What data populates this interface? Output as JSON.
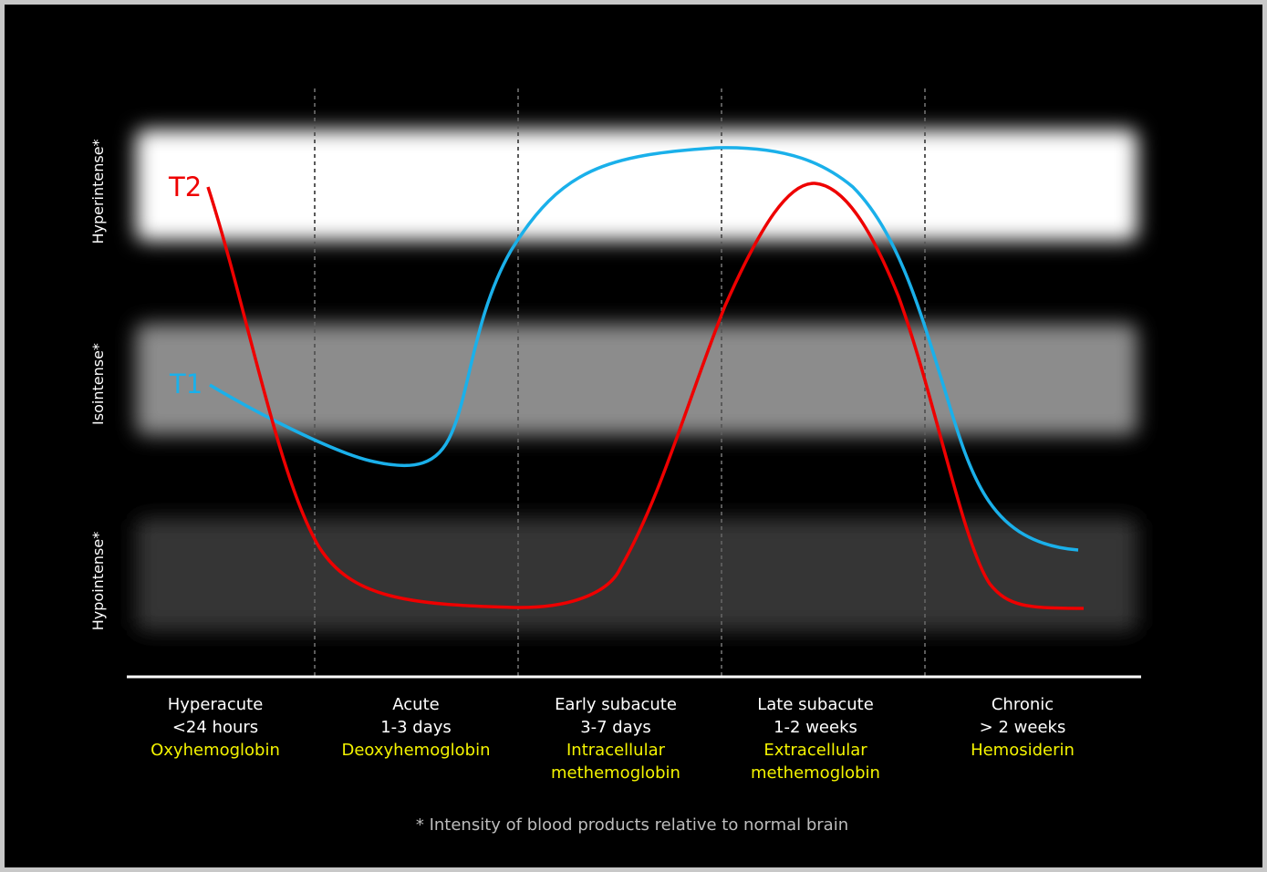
{
  "y_levels": [
    {
      "label": "Hyperintense*",
      "band_color": "#ffffff"
    },
    {
      "label": "Isointense*",
      "band_color": "#8c8c8c"
    },
    {
      "label": "Hypointense*",
      "band_color": "#363636"
    }
  ],
  "stages": [
    {
      "name": "Hyperacute",
      "time": "<24 hours",
      "blood": [
        "Oxyhemoglobin"
      ]
    },
    {
      "name": "Acute",
      "time": "1-3 days",
      "blood": [
        "Deoxyhemoglobin"
      ]
    },
    {
      "name": "Early subacute",
      "time": "3-7 days",
      "blood": [
        "Intracellular",
        "methemoglobin"
      ]
    },
    {
      "name": "Late subacute",
      "time": "1-2 weeks",
      "blood": [
        "Extracellular",
        "methemoglobin"
      ]
    },
    {
      "name": "Chronic",
      "time": "> 2 weeks",
      "blood": [
        "Hemosiderin"
      ]
    }
  ],
  "curves": [
    {
      "label": "T2",
      "color": "#ee0000"
    },
    {
      "label": "T1",
      "color": "#1ab0ea"
    }
  ],
  "colors": {
    "background": "#000000",
    "stage_text": "#ffffff",
    "blood_text": "#f4f400",
    "footnote_text": "#bdbdbd",
    "divider": "#5a5a5a"
  },
  "footnote": "* Intensity of blood products relative to normal brain"
}
